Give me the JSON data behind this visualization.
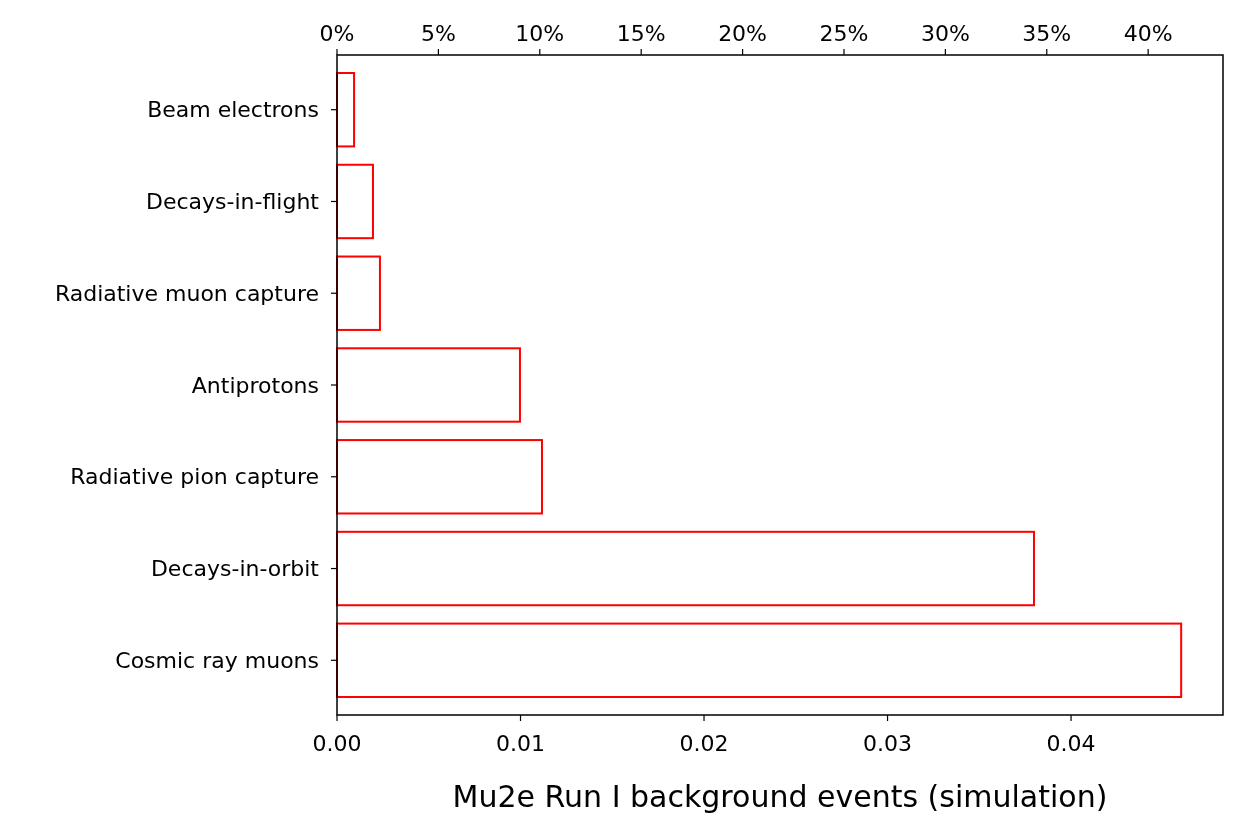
{
  "chart_data": {
    "type": "bar",
    "orientation": "horizontal",
    "xlabel": "Mu2e Run I background events (simulation)",
    "categories": [
      "Beam electrons",
      "Decays-in-flight",
      "Radiative muon capture",
      "Antiprotons",
      "Radiative pion capture",
      "Decays-in-orbit",
      "Cosmic ray muons"
    ],
    "values": [
      0.00093,
      0.00196,
      0.00234,
      0.00997,
      0.01117,
      0.03798,
      0.046
    ],
    "color": "#ff0000",
    "xlim": [
      0,
      0.04828
    ],
    "xticks": [
      {
        "value": 0,
        "label": "0.00"
      },
      {
        "value": 0.01,
        "label": "0.01"
      },
      {
        "value": 0.02,
        "label": "0.02"
      },
      {
        "value": 0.03,
        "label": "0.03"
      },
      {
        "value": 0.04,
        "label": "0.04"
      }
    ],
    "x2lim": [
      0,
      43.69
    ],
    "x2ticks": [
      {
        "value": 0,
        "label": "0%"
      },
      {
        "value": 5,
        "label": "5%"
      },
      {
        "value": 10,
        "label": "10%"
      },
      {
        "value": 15,
        "label": "15%"
      },
      {
        "value": 20,
        "label": "20%"
      },
      {
        "value": 25,
        "label": "25%"
      },
      {
        "value": 30,
        "label": "30%"
      },
      {
        "value": 35,
        "label": "35%"
      },
      {
        "value": 40,
        "label": "40%"
      }
    ],
    "grid": false
  }
}
